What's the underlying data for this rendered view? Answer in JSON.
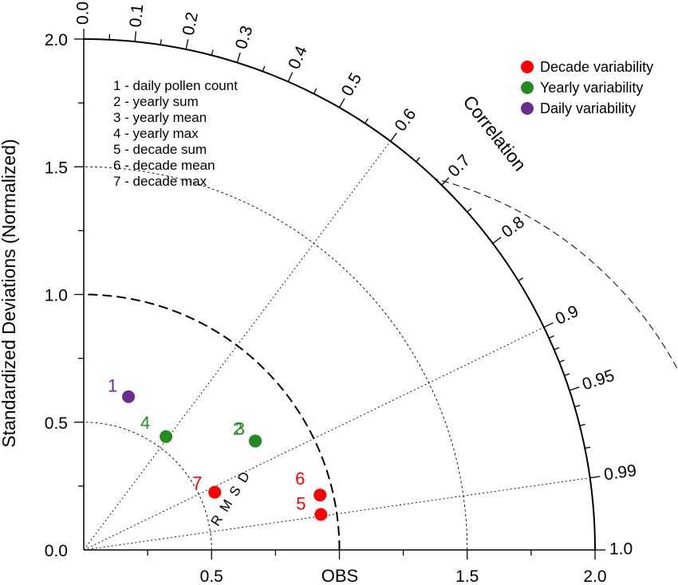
{
  "chart_data": {
    "type": "scatter",
    "subtype": "taylor-diagram",
    "y_axis_label": "Standardized Deviations (Normalized)",
    "x_axis_ref_label": "OBS",
    "correlation_label": "Correlation",
    "rmsd_label": "R M S D",
    "std_max": 2.0,
    "reference_std": 1.0,
    "y_ticks": [
      {
        "value": 0.0,
        "label": "0.0"
      },
      {
        "value": 0.5,
        "label": "0.5"
      },
      {
        "value": 1.0,
        "label": "1.0"
      },
      {
        "value": 1.5,
        "label": "1.5"
      },
      {
        "value": 2.0,
        "label": "2.0"
      }
    ],
    "x_ticks": [
      {
        "value": 0.5,
        "label": "0.5"
      },
      {
        "value": 1.5,
        "label": "1.5"
      },
      {
        "value": 2.0,
        "label": "2.0"
      }
    ],
    "corr_ticks": [
      {
        "value": 0.0,
        "label": "0.0"
      },
      {
        "value": 0.1,
        "label": "0.1"
      },
      {
        "value": 0.2,
        "label": "0.2"
      },
      {
        "value": 0.3,
        "label": "0.3"
      },
      {
        "value": 0.4,
        "label": "0.4"
      },
      {
        "value": 0.5,
        "label": "0.5"
      },
      {
        "value": 0.6,
        "label": "0.6"
      },
      {
        "value": 0.7,
        "label": "0.7"
      },
      {
        "value": 0.8,
        "label": "0.8"
      },
      {
        "value": 0.9,
        "label": "0.9"
      },
      {
        "value": 0.95,
        "label": "0.95"
      },
      {
        "value": 0.99,
        "label": "0.99"
      },
      {
        "value": 1.0,
        "label": "1.0"
      }
    ],
    "corr_rays": [
      0.6,
      0.9,
      0.99
    ],
    "std_arcs": [
      0.5,
      1.5
    ],
    "rms_arcs": [
      0.5,
      1.0,
      1.5
    ],
    "legend": [
      {
        "label": "Decade variability",
        "color": "#ff0000"
      },
      {
        "label": "Yearly variability",
        "color": "#228b22"
      },
      {
        "label": "Daily variability",
        "color": "#6a2c91"
      }
    ],
    "index_notes": [
      "1 - daily pollen count",
      "2 - yearly sum",
      "3 - yearly mean",
      "4 - yearly max",
      "5 - decade sum",
      "6 - decade mean",
      "7 - decade max"
    ],
    "points": [
      {
        "id": "1",
        "group": "Daily variability",
        "color": "#6a2c91",
        "std": 0.625,
        "corr": 0.28
      },
      {
        "id": "2",
        "group": "Yearly variability",
        "color": "#228b22",
        "std": 0.795,
        "corr": 0.844
      },
      {
        "id": "3",
        "group": "Yearly variability",
        "color": "#228b22",
        "std": 0.795,
        "corr": 0.844
      },
      {
        "id": "4",
        "group": "Yearly variability",
        "color": "#228b22",
        "std": 0.548,
        "corr": 0.587
      },
      {
        "id": "5",
        "group": "Decade variability",
        "color": "#ff0000",
        "std": 0.938,
        "corr": 0.989
      },
      {
        "id": "6",
        "group": "Decade variability",
        "color": "#ff0000",
        "std": 0.949,
        "corr": 0.974
      },
      {
        "id": "7",
        "group": "Decade variability",
        "color": "#ff0000",
        "std": 0.56,
        "corr": 0.915
      }
    ]
  }
}
